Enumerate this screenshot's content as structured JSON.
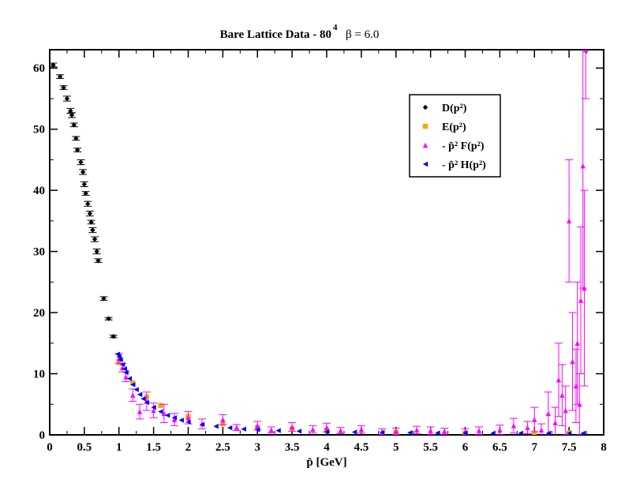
{
  "chart_data": {
    "type": "scatter",
    "title_main": "Bare Lattice Data - 80",
    "title_exp": "4",
    "title_beta": "β = 6.0",
    "xlabel": "p̂ [GeV]",
    "ylabel": "",
    "xlim": [
      0,
      8
    ],
    "ylim": [
      0,
      63
    ],
    "x_ticks": [
      0,
      0.5,
      1,
      1.5,
      2,
      2.5,
      3,
      3.5,
      4,
      4.5,
      5,
      5.5,
      6,
      6.5,
      7,
      7.5,
      8
    ],
    "x_tick_labels": [
      "0",
      "0.5",
      "1",
      "1.5",
      "2",
      "2.5",
      "3",
      "3.5",
      "4",
      "4.5",
      "5",
      "5.5",
      "6",
      "6.5",
      "7",
      "7.5",
      "8"
    ],
    "y_ticks": [
      0,
      10,
      20,
      30,
      40,
      50,
      60
    ],
    "y_tick_labels": [
      "0",
      "10",
      "20",
      "30",
      "40",
      "50",
      "60"
    ],
    "legend_position": "top-right",
    "colors": {
      "D": "#000000",
      "E": "#ffa500",
      "F": "#ff00ff",
      "H": "#0000ff"
    },
    "series": [
      {
        "name": "D(p²)",
        "key": "D",
        "marker": "diamond",
        "x": [
          0.05,
          0.15,
          0.2,
          0.25,
          0.3,
          0.32,
          0.35,
          0.38,
          0.4,
          0.45,
          0.48,
          0.5,
          0.52,
          0.55,
          0.58,
          0.6,
          0.62,
          0.65,
          0.68,
          0.7,
          0.78,
          0.85,
          0.92
        ],
        "y": [
          60.5,
          58.6,
          56.8,
          55.0,
          53.0,
          52.3,
          50.7,
          48.5,
          46.6,
          44.6,
          43.0,
          41.0,
          39.5,
          37.8,
          36.2,
          34.8,
          33.5,
          32.0,
          30.0,
          28.5,
          22.3,
          19.0,
          16.1
        ],
        "yerr": [
          0.3,
          0.3,
          0.3,
          0.4,
          0.4,
          0.4,
          0.3,
          0.3,
          0.3,
          0.4,
          0.4,
          0.4,
          0.3,
          0.4,
          0.4,
          0.3,
          0.4,
          0.4,
          0.4,
          0.3,
          0.3,
          0.2,
          0.2
        ]
      },
      {
        "name": "E(p²)",
        "key": "E",
        "marker": "square",
        "x": [
          1.0,
          1.2,
          1.4,
          1.6,
          2.0,
          2.5,
          3.0,
          3.5,
          4.0,
          5.0,
          6.0,
          7.0,
          7.5
        ],
        "y": [
          11.8,
          8.5,
          6.2,
          4.8,
          3.0,
          1.8,
          1.2,
          0.9,
          0.7,
          0.4,
          0.3,
          0.3,
          0.3
        ],
        "yerr": [
          0,
          0,
          0,
          0,
          0,
          0,
          0,
          0,
          0,
          0,
          0,
          0,
          0
        ]
      },
      {
        "name": "- p̂² F(p²)",
        "key": "F",
        "marker": "triangle-up",
        "x": [
          1.0,
          1.05,
          1.1,
          1.2,
          1.3,
          1.4,
          1.5,
          1.65,
          1.8,
          2.0,
          2.2,
          2.5,
          2.7,
          3.0,
          3.2,
          3.5,
          3.8,
          4.0,
          4.2,
          4.5,
          4.8,
          5.0,
          5.3,
          5.5,
          5.7,
          6.0,
          6.2,
          6.5,
          6.7,
          6.9,
          7.0,
          7.1,
          7.2,
          7.3,
          7.35,
          7.4,
          7.45,
          7.5,
          7.55,
          7.6,
          7.62,
          7.65,
          7.67,
          7.7,
          7.72,
          7.74
        ],
        "y": [
          12.5,
          11.0,
          9.5,
          6.5,
          3.8,
          5.5,
          4.0,
          3.5,
          2.5,
          2.8,
          1.8,
          2.5,
          1.2,
          1.5,
          0.8,
          1.3,
          0.9,
          1.2,
          0.7,
          0.9,
          0.5,
          0.6,
          0.8,
          0.7,
          0.6,
          0.5,
          0.7,
          0.8,
          1.5,
          1.2,
          2.5,
          0.8,
          3.5,
          2.0,
          9.0,
          6.5,
          4.0,
          35.0,
          12.0,
          8.0,
          15.0,
          5.0,
          22.0,
          44.0,
          24.0,
          63.0
        ],
        "yerr": [
          0.8,
          0.7,
          0.8,
          1.0,
          1.2,
          1.5,
          1.2,
          1.5,
          1.0,
          1.0,
          0.8,
          0.8,
          0.5,
          0.7,
          0.5,
          0.7,
          0.6,
          0.7,
          0.5,
          0.6,
          0.5,
          0.5,
          0.6,
          0.6,
          0.5,
          0.5,
          0.6,
          0.8,
          1.2,
          1.0,
          2.0,
          1.0,
          3.5,
          2.5,
          6.0,
          5.0,
          4.0,
          10.0,
          8.0,
          6.0,
          10.0,
          5.0,
          12.0,
          20.0,
          16.0,
          8.0
        ]
      },
      {
        "name": "- p̂² H(p²)",
        "key": "H",
        "marker": "triangle-left",
        "x": [
          0.98,
          1.0,
          1.02,
          1.05,
          1.08,
          1.1,
          1.15,
          1.2,
          1.25,
          1.3,
          1.35,
          1.4,
          1.5,
          1.6,
          1.7,
          1.8,
          1.9,
          2.0,
          2.2,
          2.4,
          2.6,
          2.8,
          3.0,
          3.3,
          3.6,
          4.0,
          4.4,
          4.8,
          5.2,
          5.6,
          6.0,
          6.4,
          6.8,
          7.2,
          7.5,
          7.7
        ],
        "y": [
          13.2,
          12.8,
          12.3,
          11.5,
          10.8,
          10.2,
          9.2,
          8.2,
          7.4,
          6.6,
          5.9,
          5.3,
          4.5,
          3.8,
          3.2,
          2.8,
          2.4,
          2.1,
          1.7,
          1.4,
          1.15,
          0.95,
          0.85,
          0.7,
          0.6,
          0.5,
          0.45,
          0.4,
          0.35,
          0.32,
          0.3,
          0.28,
          0.27,
          0.26,
          0.25,
          0.25
        ],
        "yerr": [
          0,
          0,
          0,
          0,
          0,
          0,
          0,
          0,
          0,
          0,
          0,
          0,
          0,
          0,
          0,
          0,
          0,
          0,
          0,
          0,
          0,
          0,
          0,
          0,
          0,
          0,
          0,
          0,
          0,
          0,
          0,
          0,
          0,
          0,
          0,
          0
        ]
      }
    ]
  }
}
